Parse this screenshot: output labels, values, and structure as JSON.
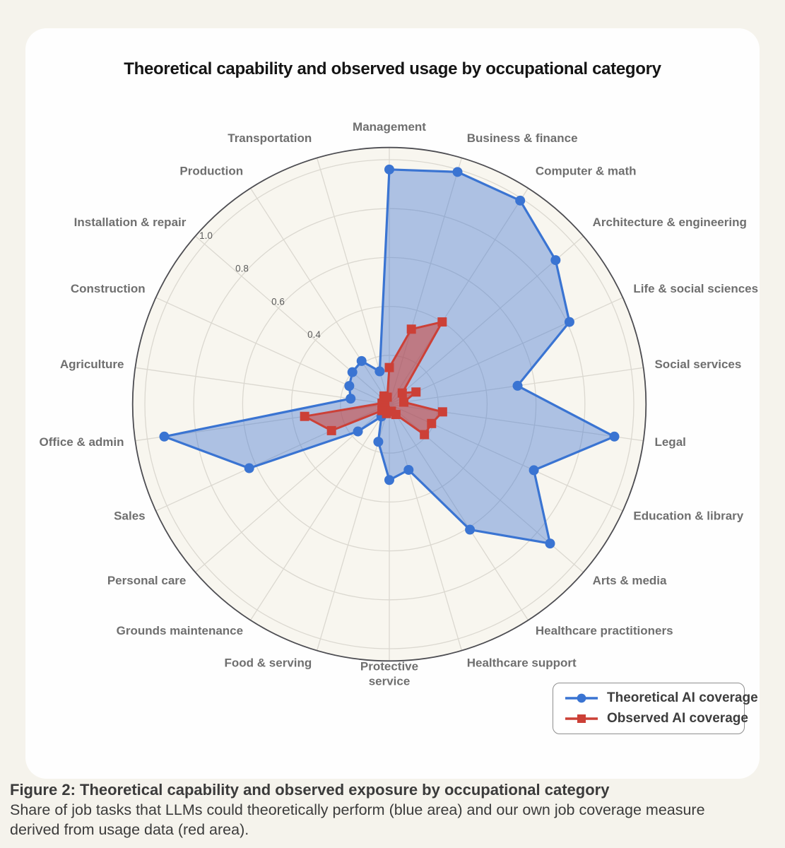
{
  "page": {
    "background_color": "#f5f3ec",
    "card_color": "#fefefe"
  },
  "title": "Theoretical capability and observed usage by occupational category",
  "legend": {
    "items": [
      {
        "label": "Theoretical AI coverage",
        "color": "#3a74d2",
        "marker": "circle"
      },
      {
        "label": "Observed AI coverage",
        "color": "#cc4037",
        "marker": "square"
      }
    ]
  },
  "caption": {
    "heading": "Figure 2: Theoretical capability and observed exposure by occupational category",
    "body": "Share of job tasks that LLMs could theoretically perform (blue area) and our own job coverage measure derived from usage data (red area)."
  },
  "chart_data": {
    "type": "radar",
    "title": "Theoretical capability and observed usage by occupational category",
    "categories": [
      "Management",
      "Business & finance",
      "Computer & math",
      "Architecture & engineering",
      "Life & social sciences",
      "Social services",
      "Legal",
      "Education & library",
      "Arts & media",
      "Healthcare practitioners",
      "Healthcare support",
      "Protective service",
      "Food & serving",
      "Grounds maintenance",
      "Personal care",
      "Sales",
      "Office & admin",
      "Agriculture",
      "Construction",
      "Installation & repair",
      "Production",
      "Transportation"
    ],
    "series": [
      {
        "name": "Theoretical AI coverage",
        "marker": "circle",
        "line_color": "#3a74d2",
        "fill_color": "rgba(59,116,210,0.40)",
        "values": [
          0.96,
          0.99,
          0.99,
          0.9,
          0.81,
          0.53,
          0.93,
          0.65,
          0.87,
          0.61,
          0.28,
          0.31,
          0.16,
          0.06,
          0.17,
          0.63,
          0.93,
          0.16,
          0.18,
          0.2,
          0.21,
          0.14
        ]
      },
      {
        "name": "Observed AI coverage",
        "marker": "square",
        "line_color": "#cc4037",
        "fill_color": "rgba(204,64,55,0.55)",
        "values": [
          0.15,
          0.32,
          0.4,
          0.07,
          0.12,
          0.06,
          0.22,
          0.19,
          0.19,
          0.05,
          0.03,
          0.03,
          0.04,
          0.03,
          0.04,
          0.26,
          0.35,
          0.03,
          0.02,
          0.03,
          0.04,
          0.03
        ]
      }
    ],
    "radial_ticks": [
      "0.4",
      "0.6",
      "0.8",
      "1.0"
    ],
    "grid_rings": [
      0.2,
      0.4,
      0.6,
      0.8,
      1.0
    ],
    "range": [
      0,
      1.05
    ],
    "start_angle": "top",
    "direction": "clockwise",
    "grid": true,
    "wrap_labels": [
      "Protective service"
    ],
    "legend_position": "bottom-right",
    "style": {
      "polar_background": "#f8f6ef",
      "grid_color": "#dbd8d0",
      "outer_circle_color": "#4d4d52",
      "category_label_color": "#6f6f6f",
      "tick_label_color": "#5c5c5c"
    }
  }
}
